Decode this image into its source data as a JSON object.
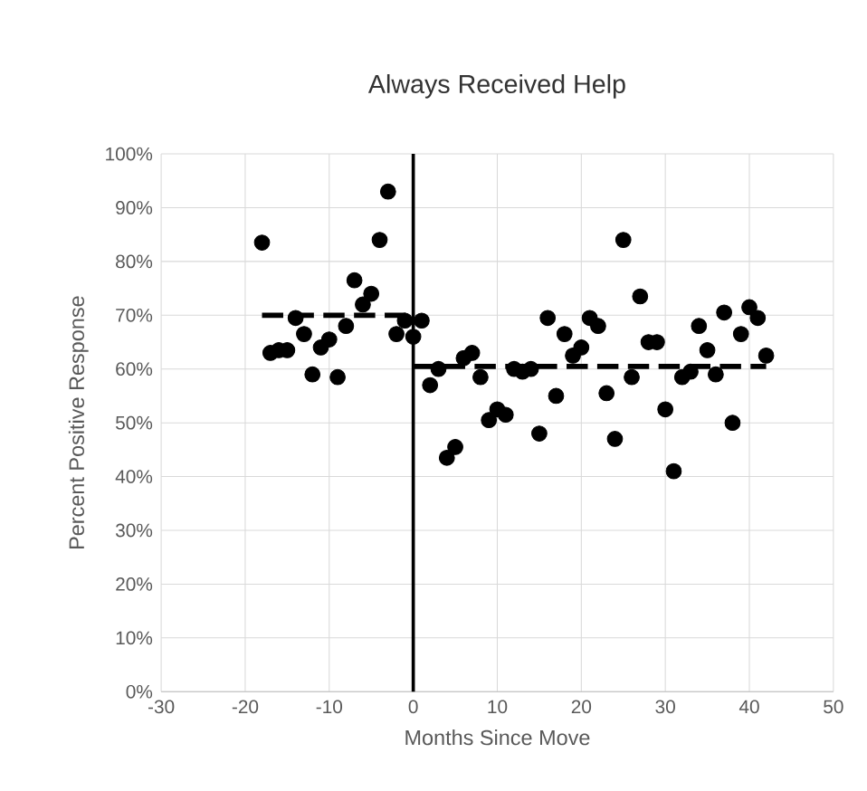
{
  "chart_data": {
    "type": "scatter",
    "title": "Always Received Help",
    "xlabel": "Months Since Move",
    "ylabel": "Percent Positive Response",
    "xlim": [
      -30,
      50
    ],
    "xticks": [
      -30,
      -20,
      -10,
      0,
      10,
      20,
      30,
      40,
      50
    ],
    "ylim": [
      0,
      100
    ],
    "yticks": [
      {
        "value": 0,
        "label": "0%"
      },
      {
        "value": 10,
        "label": "10%"
      },
      {
        "value": 20,
        "label": "20%"
      },
      {
        "value": 30,
        "label": "30%"
      },
      {
        "value": 40,
        "label": "40%"
      },
      {
        "value": 50,
        "label": "50%"
      },
      {
        "value": 60,
        "label": "60%"
      },
      {
        "value": 70,
        "label": "70%"
      },
      {
        "value": 80,
        "label": "80%"
      },
      {
        "value": 90,
        "label": "90%"
      },
      {
        "value": 100,
        "label": "100%"
      }
    ],
    "grid": true,
    "marker": "circle",
    "series": [
      {
        "color": "#000000",
        "x": [
          -18,
          -17,
          -16,
          -15,
          -14,
          -13,
          -12,
          -11,
          -10,
          -9,
          -8,
          -7,
          -6,
          -5,
          -4,
          -3,
          -2,
          -1,
          0,
          1,
          2,
          3,
          4,
          5,
          6,
          7,
          8,
          9,
          10,
          11,
          12,
          13,
          14,
          15,
          16,
          17,
          18,
          19,
          20,
          21,
          22,
          23,
          24,
          25,
          26,
          27,
          28,
          29,
          30,
          31,
          32,
          33,
          34,
          35,
          36,
          37,
          38,
          39,
          40,
          41,
          42
        ],
        "values": [
          83.5,
          63,
          63.5,
          63.5,
          69.5,
          66.5,
          59,
          64,
          65.5,
          58.5,
          68,
          76.5,
          72,
          74,
          84,
          93,
          66.5,
          69,
          66,
          69,
          57,
          60,
          43.5,
          45.5,
          62,
          63,
          58.5,
          50.5,
          52.5,
          51.5,
          60,
          59.5,
          60,
          48,
          69.5,
          55,
          66.5,
          62.5,
          64,
          69.5,
          68,
          55.5,
          47,
          84,
          58.5,
          73.5,
          65,
          65,
          52.5,
          41,
          58.5,
          59.5,
          68,
          63.5,
          59,
          70.5,
          50,
          66.5,
          71.5,
          69.5,
          62.5
        ]
      },
      {
        "type": "line",
        "color": "#000000",
        "marker": "none",
        "line_style": "dashed",
        "x": [
          -18,
          0
        ],
        "values": [
          70,
          70
        ]
      },
      {
        "type": "line",
        "color": "#000000",
        "marker": "none",
        "line_style": "dashed",
        "x": [
          0,
          42
        ],
        "values": [
          60.5,
          60.5
        ]
      }
    ],
    "ref_lines": [
      {
        "axis": "x",
        "value": 0,
        "color": "#000000"
      }
    ]
  }
}
